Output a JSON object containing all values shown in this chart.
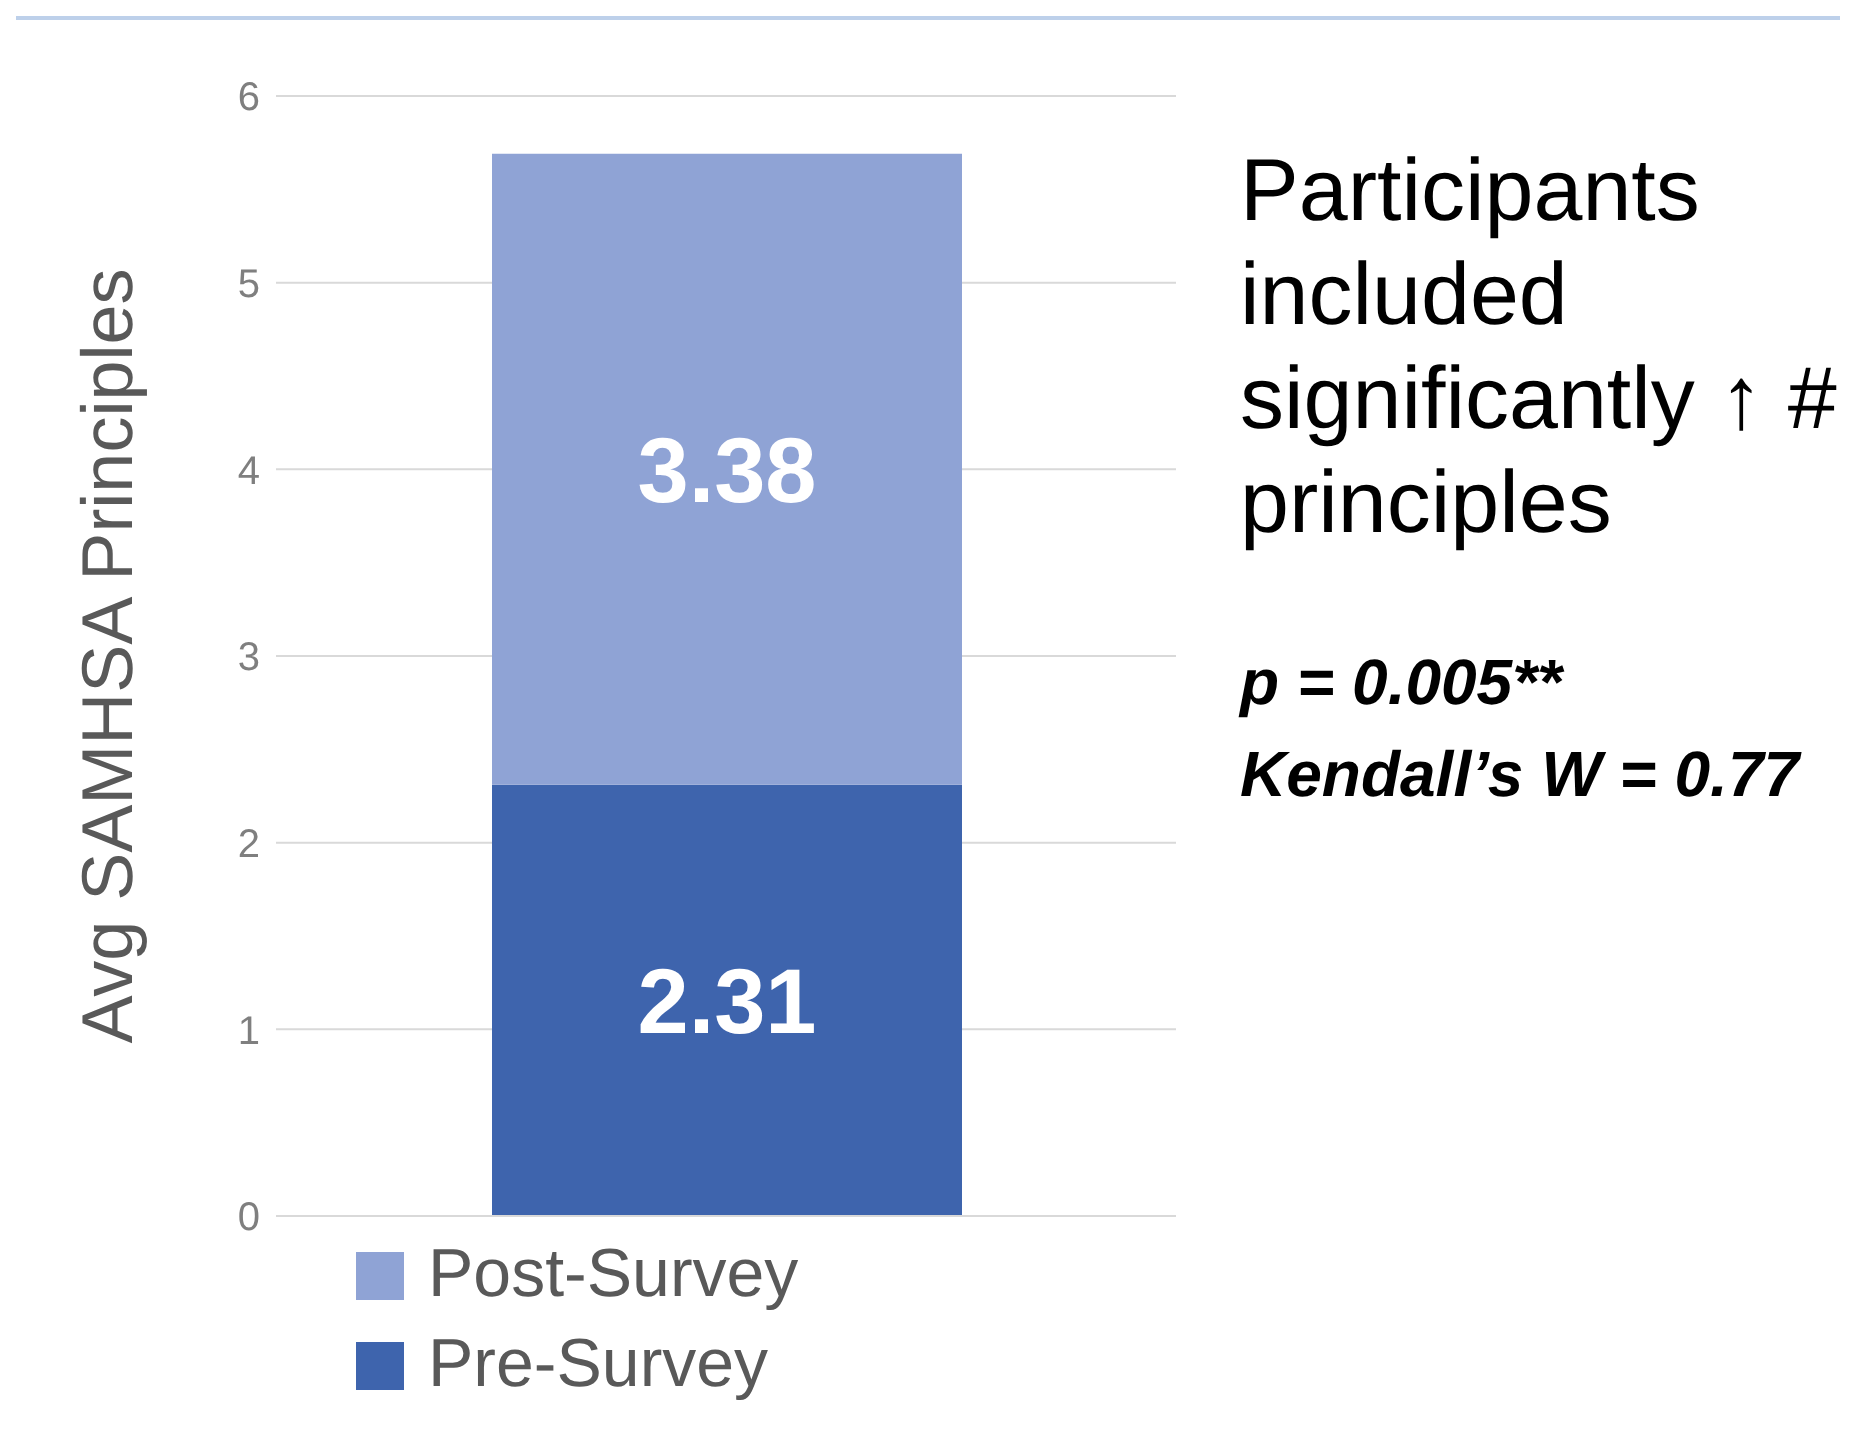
{
  "chart_data": {
    "type": "bar",
    "stacked": true,
    "categories": [
      null
    ],
    "series": [
      {
        "name": "Pre-Survey",
        "color": "#3e64ad",
        "values": [
          2.31
        ]
      },
      {
        "name": "Post-Survey",
        "color": "#8fa3d5",
        "values": [
          3.38
        ]
      }
    ],
    "ylabel": "Avg SAMHSA Principles",
    "ylim": [
      0,
      6
    ],
    "yticks": [
      0,
      1,
      2,
      3,
      4,
      5,
      6
    ],
    "grid": "y",
    "legend": "bottom",
    "data_labels": true,
    "annotations": [
      "Participants included significantly ↑ # principles",
      "p = 0.005** Kendall’s W = 0.77"
    ]
  }
}
